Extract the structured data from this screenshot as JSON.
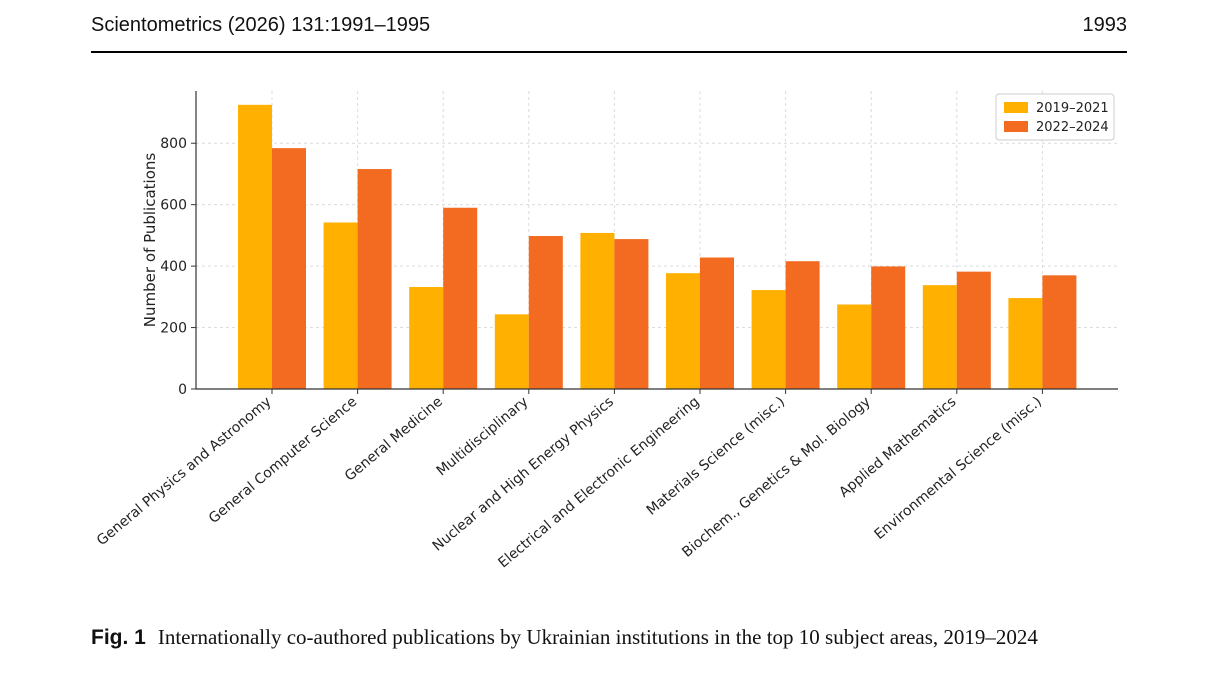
{
  "header": {
    "journal_ref": "Scientometrics (2026) 131:1991–1995",
    "page_number": "1993"
  },
  "caption": {
    "label": "Fig. 1",
    "text": "Internationally co-authored publications by Ukrainian institutions in the top 10 subject areas, 2019–2024"
  },
  "chart_data": {
    "type": "bar",
    "title": "",
    "xlabel": "",
    "ylabel": "Number of Publications",
    "ylim": [
      0,
      970
    ],
    "yticks": [
      0,
      200,
      400,
      600,
      800
    ],
    "grid": true,
    "legend_position": "top-right",
    "categories": [
      "General Physics and Astronomy",
      "General Computer Science",
      "General Medicine",
      "Multidisciplinary",
      "Nuclear and High Energy Physics",
      "Electrical and Electronic Engineering",
      "Materials Science (misc.)",
      "Biochem., Genetics & Mol. Biology",
      "Applied Mathematics",
      "Environmental Science (misc.)"
    ],
    "series": [
      {
        "name": "2019–2021",
        "color": "#FFB000",
        "values": [
          925,
          542,
          332,
          243,
          508,
          377,
          322,
          275,
          338,
          296
        ]
      },
      {
        "name": "2022–2024",
        "color": "#F26B21",
        "values": [
          784,
          716,
          590,
          498,
          488,
          428,
          416,
          399,
          382,
          370
        ]
      }
    ]
  }
}
